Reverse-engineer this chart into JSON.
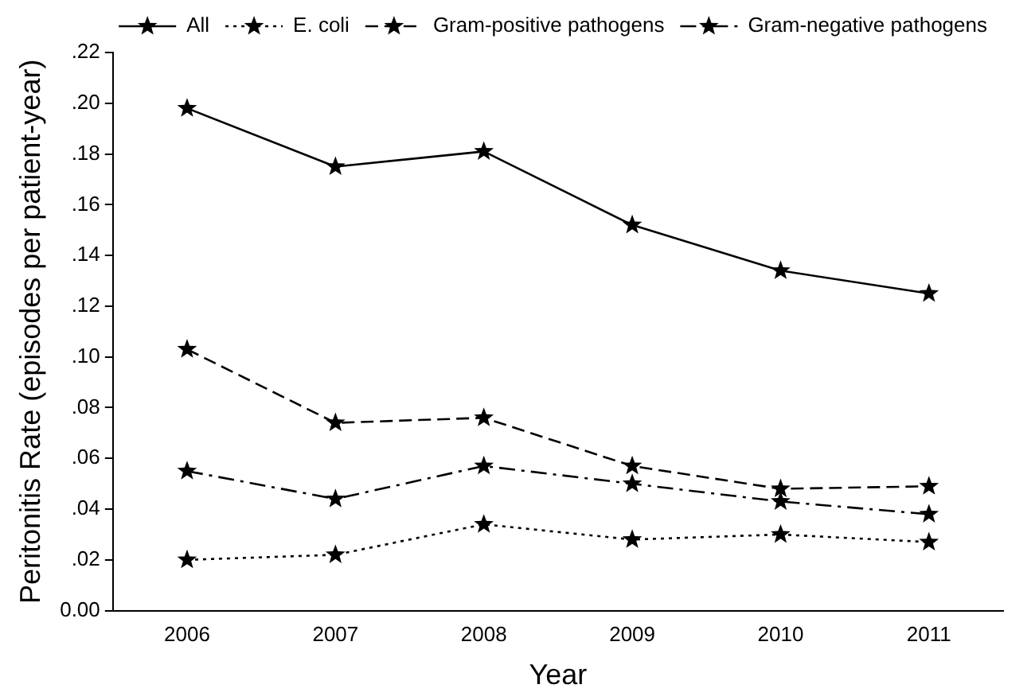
{
  "chart_data": {
    "type": "line",
    "xlabel": "Year",
    "ylabel": "Peritonitis Rate (episodes per patient-year)",
    "categories": [
      "2006",
      "2007",
      "2008",
      "2009",
      "2010",
      "2011"
    ],
    "series": [
      {
        "name": "All",
        "color": "#000000",
        "values": [
          0.198,
          0.175,
          0.181,
          0.152,
          0.134,
          0.125
        ],
        "line_style": "solid"
      },
      {
        "name": "E. coli",
        "color": "#000000",
        "values": [
          0.02,
          0.022,
          0.034,
          0.028,
          0.03,
          0.027
        ],
        "line_style": "dotted"
      },
      {
        "name": "Gram-positive pathogens",
        "color": "#000000",
        "values": [
          0.103,
          0.074,
          0.076,
          0.057,
          0.048,
          0.049
        ],
        "line_style": "dashed"
      },
      {
        "name": "Gram-negative pathogens",
        "color": "#000000",
        "values": [
          0.055,
          0.044,
          0.057,
          0.05,
          0.043,
          0.038
        ],
        "line_style": "dashdot"
      }
    ],
    "ylim": [
      0,
      0.22
    ],
    "yticks": [
      {
        "value": 0,
        "label": "0.00"
      },
      {
        "value": 0.02,
        "label": ".02"
      },
      {
        "value": 0.04,
        "label": ".04"
      },
      {
        "value": 0.06,
        "label": ".06"
      },
      {
        "value": 0.08,
        "label": ".08"
      },
      {
        "value": 0.1,
        "label": ".10"
      },
      {
        "value": 0.12,
        "label": ".12"
      },
      {
        "value": 0.14,
        "label": ".14"
      },
      {
        "value": 0.16,
        "label": ".16"
      },
      {
        "value": 0.18,
        "label": ".18"
      },
      {
        "value": 0.2,
        "label": ".20"
      },
      {
        "value": 0.22,
        "label": ".22"
      }
    ],
    "grid": false,
    "legend": "top right",
    "marker": "star"
  }
}
